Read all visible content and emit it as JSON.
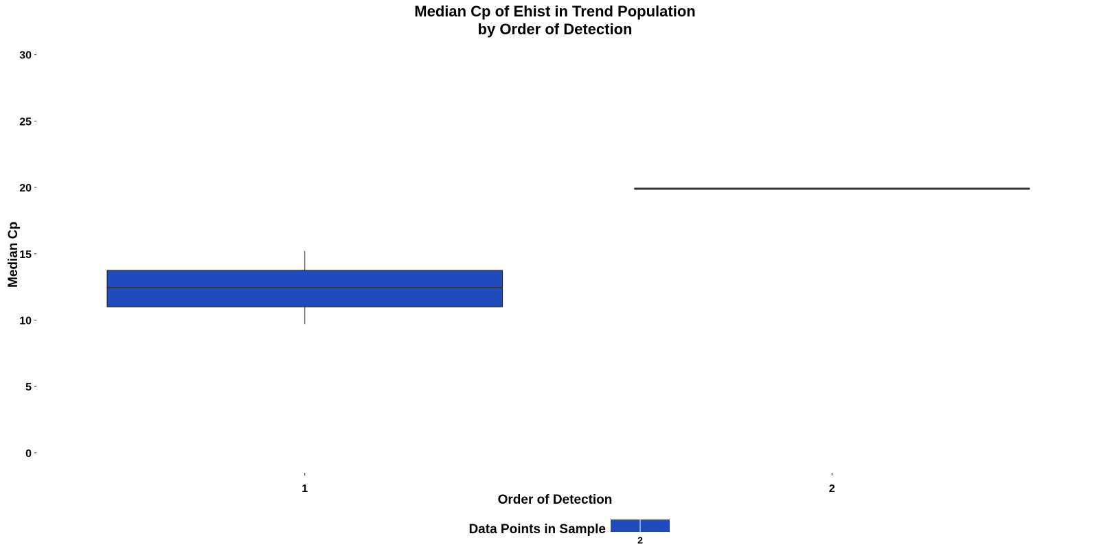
{
  "chart_data": {
    "type": "boxplot",
    "title": [
      "Median Cp of Ehist in Trend Population",
      "by Order of Detection"
    ],
    "xlabel": "Order of Detection",
    "ylabel": "Median Cp",
    "categories": [
      "1",
      "2"
    ],
    "ylim": [
      -1.3,
      30.5
    ],
    "yticks": [
      0,
      5,
      10,
      15,
      20,
      25,
      30
    ],
    "grid": false,
    "boxes": [
      {
        "category": "1",
        "min": 9.7,
        "q1": 11.0,
        "median": 12.45,
        "q3": 13.75,
        "max": 15.2,
        "n": "2"
      },
      {
        "category": "2",
        "min": 19.9,
        "q1": 19.9,
        "median": 19.9,
        "q3": 19.9,
        "max": 19.9,
        "n": "1"
      }
    ],
    "fill_color": "#1f4bbd",
    "legend": {
      "title": "Data Points in Sample",
      "position": "bottom",
      "labels": [
        "2"
      ]
    }
  }
}
